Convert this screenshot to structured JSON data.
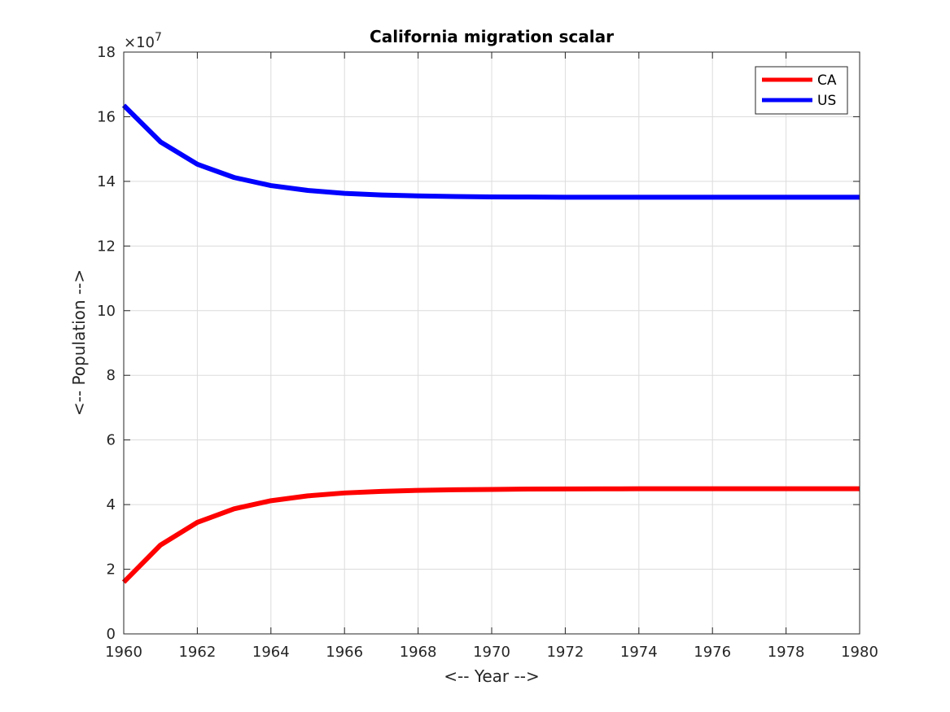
{
  "chart_data": {
    "type": "line",
    "title": "California migration scalar",
    "xlabel": "<-- Year -->",
    "ylabel": "<-- Population -->",
    "y_exponent_multiplier": "×10",
    "y_exponent_power": "7",
    "xlim": [
      1960,
      1980
    ],
    "ylim": [
      0,
      18
    ],
    "xticks": [
      "1960",
      "1962",
      "1964",
      "1966",
      "1968",
      "1970",
      "1972",
      "1974",
      "1976",
      "1978",
      "1980"
    ],
    "yticks": [
      "0",
      "2",
      "4",
      "6",
      "8",
      "10",
      "12",
      "14",
      "16",
      "18"
    ],
    "grid": true,
    "legend_position": "top-right",
    "x": [
      1960,
      1961,
      1962,
      1963,
      1964,
      1965,
      1966,
      1967,
      1968,
      1969,
      1970,
      1971,
      1972,
      1973,
      1974,
      1975,
      1976,
      1977,
      1978,
      1979,
      1980
    ],
    "series": [
      {
        "name": "CA",
        "color": "#ff0000",
        "values": [
          1.6,
          2.75,
          3.45,
          3.87,
          4.12,
          4.27,
          4.36,
          4.41,
          4.44,
          4.46,
          4.47,
          4.48,
          4.485,
          4.488,
          4.49,
          4.49,
          4.49,
          4.49,
          4.49,
          4.49,
          4.49
        ]
      },
      {
        "name": "US",
        "color": "#0000ff",
        "values": [
          16.35,
          15.22,
          14.53,
          14.12,
          13.87,
          13.72,
          13.63,
          13.58,
          13.55,
          13.53,
          13.52,
          13.515,
          13.51,
          13.51,
          13.51,
          13.51,
          13.51,
          13.51,
          13.51,
          13.51,
          13.51
        ]
      }
    ]
  }
}
